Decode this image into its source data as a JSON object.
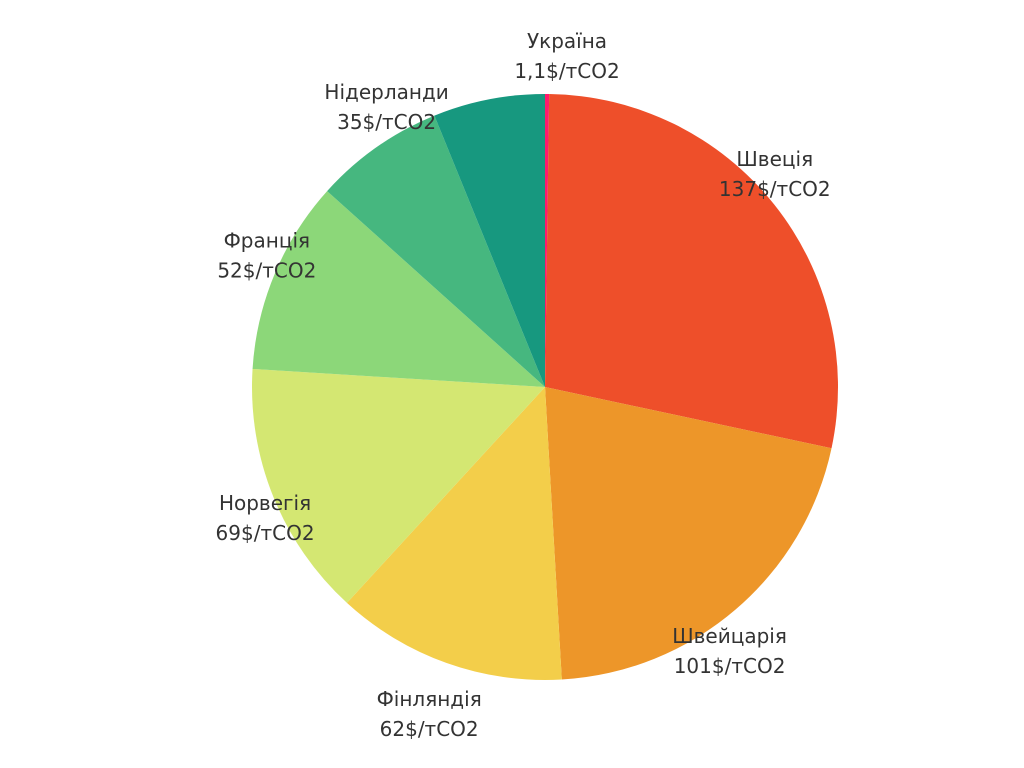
{
  "chart_data": {
    "type": "pie",
    "unit": "$/тCO2",
    "slices": [
      {
        "name": "Україна",
        "value": 1.1,
        "value_label": "1,1$/тCO2",
        "color": "#FE1A6C"
      },
      {
        "name": "Швеція",
        "value": 137,
        "value_label": "137$/тCO2",
        "color": "#EE4F2A"
      },
      {
        "name": "Швейцарія",
        "value": 101,
        "value_label": "101$/тCO2",
        "color": "#ED9629"
      },
      {
        "name": "Фінляндія",
        "value": 62,
        "value_label": "62$/тCO2",
        "color": "#F3CE4A"
      },
      {
        "name": "Норвегія",
        "value": 69,
        "value_label": "69$/тCO2",
        "color": "#D4E772"
      },
      {
        "name": "Франція",
        "value": 52,
        "value_label": "52$/тCO2",
        "color": "#8CD779"
      },
      {
        "name": "Нідерланди",
        "value": 35,
        "value_label": "35$/тCO2",
        "color": "#46B77F"
      },
      {
        "name": "",
        "value": 30,
        "value_label": "",
        "color": "#17987F"
      }
    ],
    "legend": "none"
  }
}
